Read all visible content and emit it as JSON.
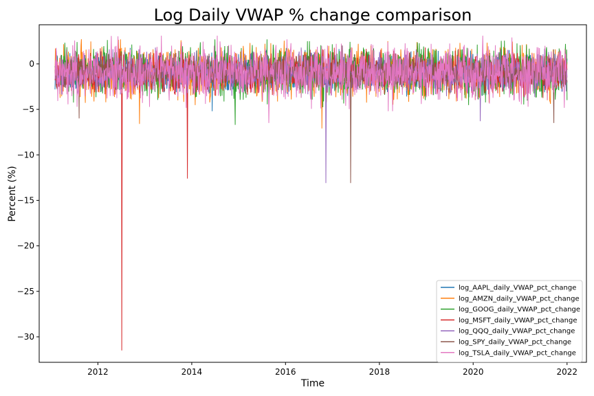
{
  "chart_data": {
    "type": "line",
    "title": "Log Daily VWAP % change comparison",
    "xlabel": "Time",
    "ylabel": "Percent (%)",
    "xlim": [
      "2010-10-01",
      "2022-06-01"
    ],
    "ylim": [
      -32.8,
      4.3
    ],
    "x_ticks": [
      {
        "label": "2012",
        "date": "2012-01-01"
      },
      {
        "label": "2014",
        "date": "2014-01-01"
      },
      {
        "label": "2016",
        "date": "2016-01-01"
      },
      {
        "label": "2018",
        "date": "2018-01-01"
      },
      {
        "label": "2020",
        "date": "2020-01-01"
      },
      {
        "label": "2022",
        "date": "2022-01-01"
      }
    ],
    "y_ticks": [
      0,
      -5,
      -10,
      -15,
      -20,
      -25,
      -30
    ],
    "grid": false,
    "legend_position": "lower-right",
    "date_range": [
      "2011-02-01",
      "2022-01-01"
    ],
    "series": [
      {
        "name": "log_AAPL_daily_VWAP_pct_change",
        "color": "#1f77b4",
        "range": [
          -5.6,
          1.8
        ],
        "spikes": [
          {
            "date": "2014-06-09",
            "value": -5.2
          }
        ]
      },
      {
        "name": "log_AMZN_daily_VWAP_pct_change",
        "color": "#ff7f0e",
        "range": [
          -6.6,
          2.8
        ],
        "spikes": [
          {
            "date": "2012-11-20",
            "value": -6.6
          },
          {
            "date": "2016-10-10",
            "value": -7.1
          },
          {
            "date": "2012-06-25",
            "value": 2.7
          }
        ]
      },
      {
        "name": "log_GOOG_daily_VWAP_pct_change",
        "color": "#2ca02c",
        "range": [
          -6.7,
          2.7
        ],
        "spikes": [
          {
            "date": "2014-12-05",
            "value": -6.7
          },
          {
            "date": "2015-08-10",
            "value": 2.7
          }
        ]
      },
      {
        "name": "log_MSFT_daily_VWAP_pct_change",
        "color": "#d62728",
        "range": [
          -4.8,
          1.8
        ],
        "spikes": [
          {
            "date": "2012-07-05",
            "value": -31.5
          },
          {
            "date": "2013-11-28",
            "value": -12.6
          }
        ]
      },
      {
        "name": "log_QQQ_daily_VWAP_pct_change",
        "color": "#9467bd",
        "range": [
          -6.2,
          1.8
        ],
        "spikes": [
          {
            "date": "2016-11-10",
            "value": -13.1
          },
          {
            "date": "2020-02-25",
            "value": -6.3
          }
        ]
      },
      {
        "name": "log_SPY_daily_VWAP_pct_change",
        "color": "#8c564b",
        "range": [
          -6.5,
          1.2
        ],
        "spikes": [
          {
            "date": "2017-05-22",
            "value": -13.1
          },
          {
            "date": "2011-08-08",
            "value": -6.0
          },
          {
            "date": "2021-09-20",
            "value": -6.5
          }
        ]
      },
      {
        "name": "log_TSLA_daily_VWAP_pct_change",
        "color": "#e377c2",
        "range": [
          -5.2,
          3.1
        ],
        "spikes": [
          {
            "date": "2015-08-24",
            "value": -6.5
          },
          {
            "date": "2020-03-16",
            "value": 3.1
          },
          {
            "date": "2013-05-09",
            "value": 3.1
          }
        ]
      }
    ]
  }
}
